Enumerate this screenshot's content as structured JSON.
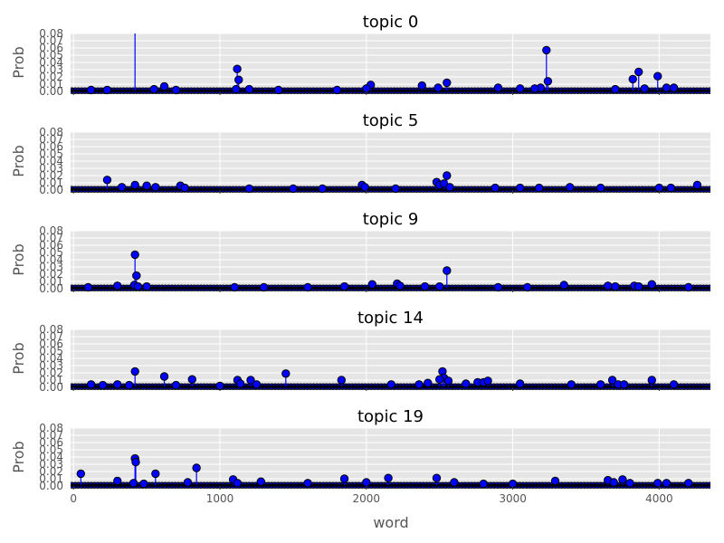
{
  "chart_data": {
    "type": "stem",
    "xlabel": "word",
    "ylabel": "Prob",
    "xlim": [
      -20,
      4350
    ],
    "ylim": [
      0,
      0.08
    ],
    "x_ticks": [
      0,
      1000,
      2000,
      3000,
      4000
    ],
    "y_ticks": [
      0.0,
      0.01,
      0.02,
      0.03,
      0.04,
      0.05,
      0.06,
      0.07,
      0.08
    ],
    "y_tick_labels": [
      "0.00",
      "0.01",
      "0.02",
      "0.03",
      "0.04",
      "0.05",
      "0.06",
      "0.07",
      "0.08"
    ],
    "grid": true,
    "baseline_y": 0.001,
    "marker_color": "#0000ff",
    "panel_background": "#e5e5e5",
    "panels": [
      {
        "title": "topic 0",
        "points": [
          [
            420,
            0.095
          ],
          [
            1118,
            0.031
          ],
          [
            1128,
            0.016
          ],
          [
            1110,
            0.003
          ],
          [
            1200,
            0.003
          ],
          [
            3230,
            0.057
          ],
          [
            3240,
            0.014
          ],
          [
            3190,
            0.005
          ],
          [
            3150,
            0.004
          ],
          [
            3860,
            0.027
          ],
          [
            3820,
            0.017
          ],
          [
            3990,
            0.021
          ],
          [
            4050,
            0.005
          ],
          [
            4100,
            0.005
          ],
          [
            2550,
            0.012
          ],
          [
            2380,
            0.008
          ],
          [
            2490,
            0.005
          ],
          [
            2030,
            0.009
          ],
          [
            2000,
            0.004
          ],
          [
            620,
            0.007
          ],
          [
            550,
            0.003
          ],
          [
            2900,
            0.005
          ],
          [
            3050,
            0.004
          ],
          [
            3700,
            0.003
          ],
          [
            3900,
            0.004
          ],
          [
            1400,
            0.002
          ],
          [
            1800,
            0.002
          ],
          [
            700,
            0.002
          ],
          [
            230,
            0.002
          ],
          [
            120,
            0.002
          ]
        ]
      },
      {
        "title": "topic 5",
        "points": [
          [
            230,
            0.014
          ],
          [
            330,
            0.004
          ],
          [
            420,
            0.007
          ],
          [
            500,
            0.006
          ],
          [
            560,
            0.004
          ],
          [
            730,
            0.006
          ],
          [
            760,
            0.003
          ],
          [
            1970,
            0.007
          ],
          [
            1990,
            0.004
          ],
          [
            2480,
            0.011
          ],
          [
            2500,
            0.007
          ],
          [
            2530,
            0.009
          ],
          [
            2550,
            0.02
          ],
          [
            2570,
            0.004
          ],
          [
            2880,
            0.003
          ],
          [
            3050,
            0.003
          ],
          [
            3180,
            0.003
          ],
          [
            3390,
            0.004
          ],
          [
            3600,
            0.003
          ],
          [
            4000,
            0.003
          ],
          [
            4080,
            0.003
          ],
          [
            4260,
            0.007
          ],
          [
            1200,
            0.002
          ],
          [
            1500,
            0.002
          ],
          [
            1700,
            0.002
          ],
          [
            2200,
            0.002
          ]
        ]
      },
      {
        "title": "topic 9",
        "points": [
          [
            420,
            0.047
          ],
          [
            430,
            0.018
          ],
          [
            415,
            0.005
          ],
          [
            440,
            0.003
          ],
          [
            300,
            0.004
          ],
          [
            500,
            0.003
          ],
          [
            100,
            0.002
          ],
          [
            2550,
            0.025
          ],
          [
            2500,
            0.003
          ],
          [
            2040,
            0.006
          ],
          [
            1850,
            0.003
          ],
          [
            2210,
            0.007
          ],
          [
            2230,
            0.004
          ],
          [
            2400,
            0.003
          ],
          [
            3350,
            0.005
          ],
          [
            3650,
            0.004
          ],
          [
            3700,
            0.003
          ],
          [
            3830,
            0.004
          ],
          [
            3860,
            0.003
          ],
          [
            3950,
            0.006
          ],
          [
            1100,
            0.002
          ],
          [
            1300,
            0.002
          ],
          [
            1600,
            0.002
          ],
          [
            2900,
            0.002
          ],
          [
            3100,
            0.002
          ],
          [
            4200,
            0.002
          ]
        ]
      },
      {
        "title": "topic 14",
        "points": [
          [
            420,
            0.022
          ],
          [
            380,
            0.003
          ],
          [
            300,
            0.004
          ],
          [
            620,
            0.015
          ],
          [
            810,
            0.011
          ],
          [
            700,
            0.003
          ],
          [
            1120,
            0.01
          ],
          [
            1140,
            0.005
          ],
          [
            1210,
            0.01
          ],
          [
            1250,
            0.004
          ],
          [
            1450,
            0.019
          ],
          [
            1830,
            0.01
          ],
          [
            2170,
            0.004
          ],
          [
            2360,
            0.004
          ],
          [
            2420,
            0.006
          ],
          [
            2520,
            0.022
          ],
          [
            2530,
            0.013
          ],
          [
            2500,
            0.011
          ],
          [
            2560,
            0.009
          ],
          [
            2680,
            0.005
          ],
          [
            2760,
            0.007
          ],
          [
            2800,
            0.007
          ],
          [
            2830,
            0.009
          ],
          [
            3050,
            0.005
          ],
          [
            3400,
            0.004
          ],
          [
            3600,
            0.004
          ],
          [
            3680,
            0.01
          ],
          [
            3720,
            0.004
          ],
          [
            3760,
            0.004
          ],
          [
            3950,
            0.01
          ],
          [
            4100,
            0.004
          ],
          [
            120,
            0.004
          ],
          [
            200,
            0.003
          ],
          [
            1000,
            0.002
          ]
        ]
      },
      {
        "title": "topic 19",
        "points": [
          [
            50,
            0.017
          ],
          [
            420,
            0.038
          ],
          [
            425,
            0.033
          ],
          [
            410,
            0.004
          ],
          [
            560,
            0.017
          ],
          [
            480,
            0.003
          ],
          [
            840,
            0.025
          ],
          [
            780,
            0.005
          ],
          [
            300,
            0.007
          ],
          [
            1090,
            0.009
          ],
          [
            1120,
            0.004
          ],
          [
            1280,
            0.006
          ],
          [
            1850,
            0.01
          ],
          [
            2000,
            0.005
          ],
          [
            2150,
            0.011
          ],
          [
            2480,
            0.011
          ],
          [
            2600,
            0.005
          ],
          [
            3290,
            0.007
          ],
          [
            3650,
            0.008
          ],
          [
            3690,
            0.005
          ],
          [
            3750,
            0.009
          ],
          [
            3800,
            0.004
          ],
          [
            3990,
            0.004
          ],
          [
            4050,
            0.004
          ],
          [
            4200,
            0.004
          ],
          [
            1600,
            0.004
          ],
          [
            2800,
            0.003
          ],
          [
            3000,
            0.003
          ]
        ]
      }
    ]
  }
}
